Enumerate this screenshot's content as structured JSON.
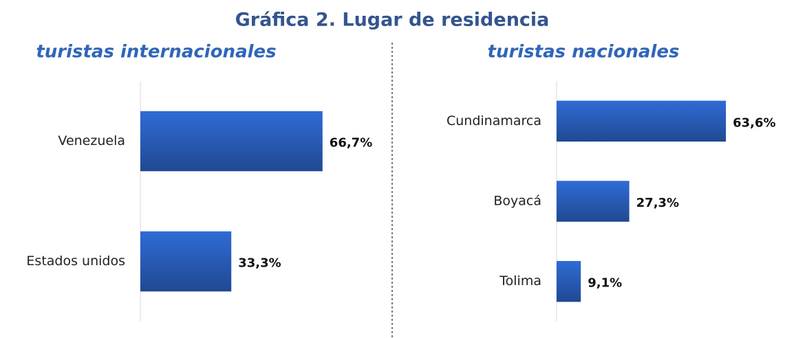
{
  "title": "Gráfica 2. Lugar de residencia",
  "chart_data": [
    {
      "type": "bar",
      "orientation": "horizontal",
      "title": "turistas internacionales",
      "categories": [
        "Venezuela",
        "Estados unidos"
      ],
      "values": [
        66.7,
        33.3
      ],
      "value_labels": [
        "66,7%",
        "33,3%"
      ],
      "color": "#2f6bd6"
    },
    {
      "type": "bar",
      "orientation": "horizontal",
      "title": "turistas nacionales",
      "categories": [
        "Cundinamarca",
        "Boyacá",
        "Tolima"
      ],
      "values": [
        63.6,
        27.3,
        9.1
      ],
      "value_labels": [
        "63,6%",
        "27,3%",
        "9,1%"
      ],
      "color": "#2f6bd6"
    }
  ]
}
